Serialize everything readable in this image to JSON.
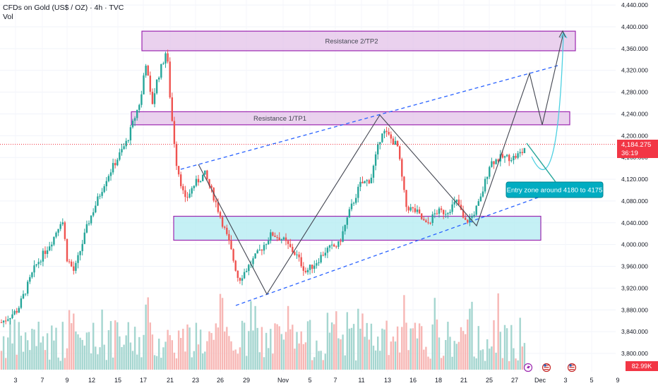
{
  "header": {
    "symbol": "CFDs on Gold (US$ / OZ) · 4h · TVC",
    "volume_label": "Vol"
  },
  "last_price": {
    "value": "4,184.275",
    "countdown": "36:19"
  },
  "volume_last": "82.99K",
  "colors": {
    "up": "#26a69a",
    "down": "#ef5350",
    "zone_purple_fill": "#e1bee7",
    "zone_purple_border": "#9c27b0",
    "zone_cyan_fill": "#b2ebf2",
    "trendline_blue": "#2962ff",
    "path_gray": "#434651",
    "projection_cyan": "#4dd0e1",
    "price_line": "#f23645"
  },
  "chart_data": {
    "type": "candlestick",
    "y_unit": "USD per oz",
    "ylim": [
      3780,
      4450
    ],
    "yticks": [
      "4,440.000",
      "4,400.000",
      "4,360.000",
      "4,320.000",
      "4,280.000",
      "4,240.000",
      "4,200.000",
      "4,160.000",
      "4,120.000",
      "4,080.000",
      "4,040.000",
      "4,000.000",
      "3,960.000",
      "3,920.000",
      "3,880.000",
      "3,840.000",
      "3,800.000"
    ],
    "xticks": [
      "3",
      "7",
      "9",
      "12",
      "15",
      "17",
      "21",
      "23",
      "26",
      "29",
      "Nov",
      "5",
      "7",
      "11",
      "13",
      "16",
      "18",
      "21",
      "25",
      "27",
      "Dec",
      "3",
      "5",
      "9"
    ],
    "annotations": [
      {
        "name": "resistance-2",
        "label": "Resistance 2/TP2",
        "y_top": 4392,
        "y_bottom": 4356
      },
      {
        "name": "resistance-1",
        "label": "Resistance 1/TP1",
        "y_top": 4244,
        "y_bottom": 4220
      },
      {
        "name": "support-zone",
        "label": "",
        "y_top": 4052,
        "y_bottom": 4008
      }
    ],
    "callout": "Entry zone around 4180 to 4175",
    "last_close": 4184.275
  }
}
